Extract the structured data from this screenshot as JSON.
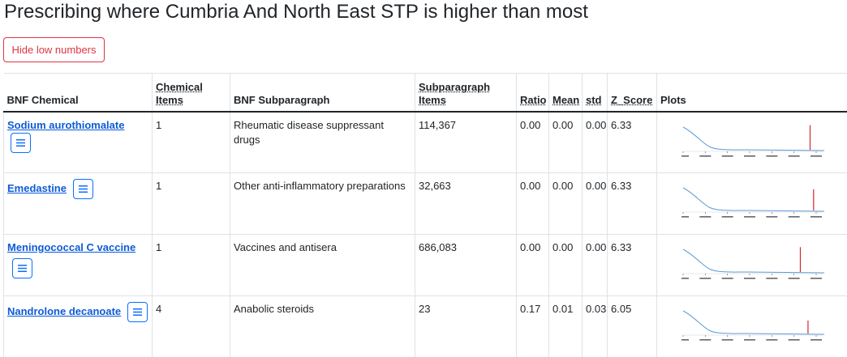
{
  "page": {
    "title": "Prescribing where Cumbria And North East STP is higher than most"
  },
  "controls": {
    "hide_low_numbers": "Hide low numbers"
  },
  "table": {
    "headers": {
      "bnf_chemical": "BNF Chemical",
      "chemical_items_line1": "Chemical",
      "chemical_items_line2": "Items",
      "bnf_subparagraph": "BNF Subparagraph",
      "subparagraph_items_line1": "Subparagraph",
      "subparagraph_items_line2": "Items",
      "ratio": "Ratio",
      "mean": "Mean",
      "std": "std",
      "z_score": "Z_Score",
      "plots": "Plots"
    },
    "rows": [
      {
        "chemical": "Sodium aurothiomalate",
        "chemical_items": "1",
        "subparagraph": "Rheumatic disease suppressant drugs",
        "subparagraph_items": "114,367",
        "ratio": "0.00",
        "mean": "0.00",
        "std": "0.00",
        "z_score": "6.33",
        "plot": {
          "spike_position": 0.91,
          "spike_height": 0.95
        }
      },
      {
        "chemical": "Emedastine",
        "chemical_items": "1",
        "subparagraph": "Other anti-inflammatory preparations",
        "subparagraph_items": "32,663",
        "ratio": "0.00",
        "mean": "0.00",
        "std": "0.00",
        "z_score": "6.33",
        "plot": {
          "spike_position": 0.935,
          "spike_height": 0.82
        }
      },
      {
        "chemical": "Meningococcal C vaccine",
        "chemical_items": "1",
        "subparagraph": "Vaccines and antisera",
        "subparagraph_items": "686,083",
        "ratio": "0.00",
        "mean": "0.00",
        "std": "0.00",
        "z_score": "6.33",
        "plot": {
          "spike_position": 0.84,
          "spike_height": 0.96
        }
      },
      {
        "chemical": "Nandrolone decanoate",
        "chemical_items": "4",
        "subparagraph": "Anabolic steroids",
        "subparagraph_items": "23",
        "ratio": "0.17",
        "mean": "0.01",
        "std": "0.03",
        "z_score": "6.05",
        "plot": {
          "spike_position": 0.895,
          "spike_height": 0.5
        }
      }
    ]
  },
  "colors": {
    "link": "#0d5bd6",
    "danger": "#dc3545",
    "primary_outline": "#0d6efd",
    "density_line": "#5b9bd5",
    "spike": "#d62728"
  }
}
